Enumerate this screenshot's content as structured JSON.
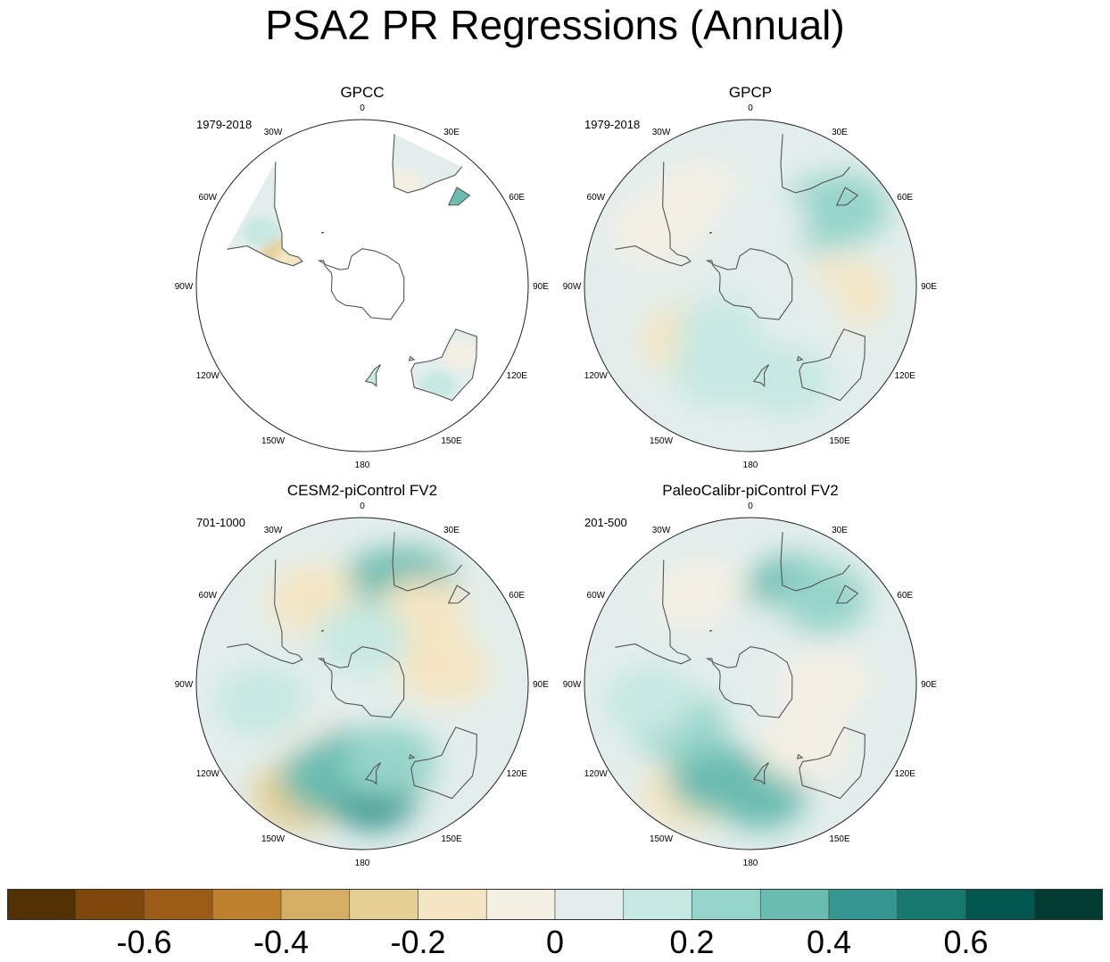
{
  "chart_data": {
    "type": "heatmap",
    "title": "PSA2 PR Regressions (Annual)",
    "projection": "south polar stereographic",
    "lon_labels": [
      "0",
      "30E",
      "60E",
      "90E",
      "120E",
      "150E",
      "180",
      "150W",
      "120W",
      "90W",
      "60W",
      "30W"
    ],
    "panels": [
      {
        "title": "GPCC",
        "period": "1979-2018",
        "coverage": "land only",
        "regions": [
          {
            "lon": -68,
            "lat": -42,
            "value": -0.25
          },
          {
            "lon": -70,
            "lat": -50,
            "value": -0.15
          },
          {
            "lon": -62,
            "lat": -28,
            "value": 0.1
          },
          {
            "lon": 22,
            "lat": -30,
            "value": -0.1
          },
          {
            "lon": 47,
            "lat": -19,
            "value": 0.35
          },
          {
            "lon": 125,
            "lat": -25,
            "value": -0.1
          },
          {
            "lon": 143,
            "lat": -22,
            "value": 0.15
          },
          {
            "lon": 172,
            "lat": -42,
            "value": 0.15
          }
        ]
      },
      {
        "title": "GPCP",
        "period": "1979-2018",
        "coverage": "global",
        "regions": [
          {
            "lon": 45,
            "lat": -35,
            "value": 0.2
          },
          {
            "lon": 50,
            "lat": -25,
            "value": 0.25
          },
          {
            "lon": 95,
            "lat": -40,
            "value": -0.15
          },
          {
            "lon": -130,
            "lat": -45,
            "value": -0.2
          },
          {
            "lon": -160,
            "lat": -40,
            "value": 0.15
          },
          {
            "lon": 160,
            "lat": -35,
            "value": 0.15
          },
          {
            "lon": -150,
            "lat": -60,
            "value": 0.1
          },
          {
            "lon": -60,
            "lat": -30,
            "value": -0.1
          },
          {
            "lon": 180,
            "lat": -55,
            "value": 0.12
          },
          {
            "lon": -30,
            "lat": -35,
            "value": -0.1
          },
          {
            "lon": 10,
            "lat": -55,
            "value": 0.08
          },
          {
            "lon": 120,
            "lat": -60,
            "value": 0.05
          }
        ]
      },
      {
        "title": "CESM2-piControl FV2",
        "period": "701-1000",
        "coverage": "global",
        "regions": [
          {
            "lon": 15,
            "lat": -35,
            "value": 0.3
          },
          {
            "lon": 25,
            "lat": -30,
            "value": 0.35
          },
          {
            "lon": 40,
            "lat": -40,
            "value": -0.15
          },
          {
            "lon": -30,
            "lat": -38,
            "value": -0.15
          },
          {
            "lon": -150,
            "lat": -20,
            "value": -0.3
          },
          {
            "lon": -160,
            "lat": -35,
            "value": 0.35
          },
          {
            "lon": 175,
            "lat": -30,
            "value": 0.45
          },
          {
            "lon": -170,
            "lat": -45,
            "value": 0.3
          },
          {
            "lon": 160,
            "lat": -45,
            "value": 0.2
          },
          {
            "lon": 80,
            "lat": -45,
            "value": -0.2
          },
          {
            "lon": -110,
            "lat": -50,
            "value": -0.1
          },
          {
            "lon": -90,
            "lat": -60,
            "value": 0.08
          },
          {
            "lon": 0,
            "lat": -65,
            "value": 0.1
          },
          {
            "lon": -100,
            "lat": -35,
            "value": 0.15
          }
        ]
      },
      {
        "title": "PaleoCalibr-piControl FV2",
        "period": "201-500",
        "coverage": "global",
        "regions": [
          {
            "lon": 25,
            "lat": -35,
            "value": 0.3
          },
          {
            "lon": 40,
            "lat": -30,
            "value": 0.25
          },
          {
            "lon": -150,
            "lat": -20,
            "value": -0.2
          },
          {
            "lon": -160,
            "lat": -35,
            "value": 0.3
          },
          {
            "lon": 175,
            "lat": -30,
            "value": 0.3
          },
          {
            "lon": -120,
            "lat": -45,
            "value": 0.2
          },
          {
            "lon": 140,
            "lat": -45,
            "value": -0.1
          },
          {
            "lon": -30,
            "lat": -35,
            "value": -0.1
          },
          {
            "lon": -100,
            "lat": -35,
            "value": 0.15
          },
          {
            "lon": 0,
            "lat": -65,
            "value": 0.08
          },
          {
            "lon": 90,
            "lat": -50,
            "value": -0.05
          }
        ]
      }
    ],
    "colorbar": {
      "levels": [
        -0.7,
        -0.6,
        -0.5,
        -0.4,
        -0.3,
        -0.2,
        -0.1,
        0,
        0.1,
        0.2,
        0.3,
        0.4,
        0.5,
        0.6,
        0.7
      ],
      "colors": [
        "#543005",
        "#7f470b",
        "#9c5b16",
        "#bf812d",
        "#d4af63",
        "#e6cf95",
        "#f5e6c3",
        "#f4efe3",
        "#e3eeec",
        "#c6e8e2",
        "#95d4c9",
        "#6bbcb0",
        "#35978f",
        "#16786f",
        "#01574f",
        "#003c30"
      ],
      "tick_labels": [
        "-0.6",
        "-0.4",
        "-0.2",
        "0",
        "0.2",
        "0.4",
        "0.6"
      ]
    }
  }
}
